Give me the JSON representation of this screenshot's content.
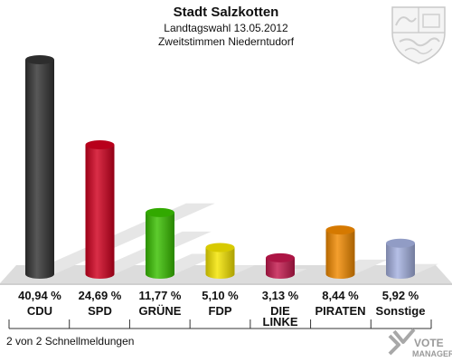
{
  "header": {
    "title": "Stadt Salzkotten",
    "subtitle1": "Landtagswahl 13.05.2012",
    "subtitle2": "Zweitstimmen Niederntudorf"
  },
  "footer": {
    "status": "2 von 2 Schnellmeldungen",
    "brand_line1": "VOTE",
    "brand_line2": "MANAGER"
  },
  "emblem": {
    "icon": "nrw-coat-of-arms-icon"
  },
  "chart_data": {
    "type": "bar",
    "title": "Stadt Salzkotten",
    "ylim": [
      0,
      45
    ],
    "grid": false,
    "categories": [
      "CDU",
      "SPD",
      "GRÜNE",
      "FDP",
      "DIE LINKE",
      "PIRATEN",
      "Sonstige"
    ],
    "category_lines": [
      [
        "CDU"
      ],
      [
        "SPD"
      ],
      [
        "GRÜNE"
      ],
      [
        "FDP"
      ],
      [
        "DIE",
        "LINKE"
      ],
      [
        "PIRATEN"
      ],
      [
        "Sonstige"
      ]
    ],
    "values": [
      40.94,
      24.69,
      11.77,
      5.1,
      3.13,
      8.44,
      5.92
    ],
    "value_labels": [
      "40,94 %",
      "24,69 %",
      "11,77 %",
      "5,10 %",
      "3,13 %",
      "8,44 %",
      "5,92 %"
    ],
    "colors": [
      "#333333",
      "#d1001f",
      "#39c000",
      "#f5e500",
      "#c4184d",
      "#f28a00",
      "#a5b1e0"
    ]
  }
}
